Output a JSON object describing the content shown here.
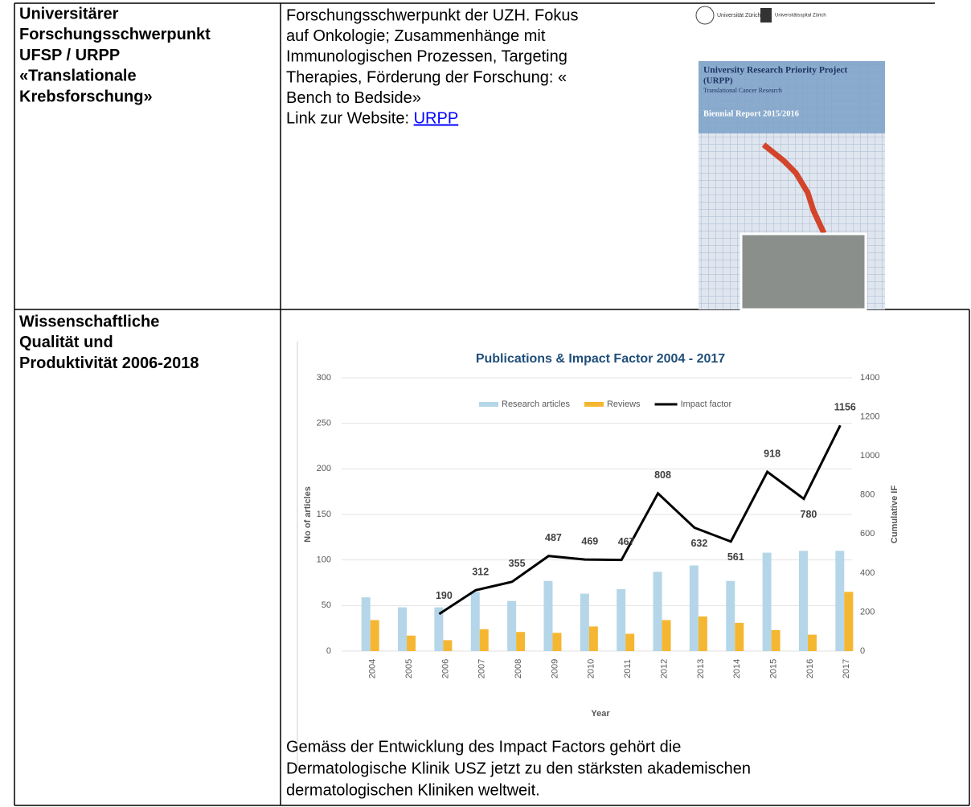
{
  "table": {
    "rows": [
      {
        "label": [
          "Universitärer",
          "Forschungsschwerpunkt",
          "UFSP / URPP",
          "«Translationale",
          "Krebsforschung»"
        ],
        "text": [
          "Forschungsschwerpunkt der UZH. Fokus",
          "auf Onkologie; Zusammenhänge mit",
          "Immunologischen Prozessen, Targeting",
          "Therapies, Förderung der Forschung: «",
          "Bench to Bedside»"
        ],
        "link_prefix": "Link zur Website: ",
        "link": "URPP",
        "cover": {
          "logo_uzh": "Universität Zürich",
          "logo_usz": "Universitätsspital Zürich",
          "title": "University Research Priority Project",
          "subtitle": "(URPP)",
          "tagline": "Translational Cancer Research",
          "report": "Biennial Report 2015/2016"
        }
      },
      {
        "label": [
          "Wissenschaftliche",
          "Qualität und",
          "Produktivität 2006-2018"
        ],
        "text": [
          "Gemäss der Entwicklung des Impact Factors gehört die",
          "Dermatologische Klinik USZ jetzt zu den stärksten akademischen",
          "dermatologischen Kliniken weltweit."
        ]
      }
    ]
  },
  "chart_data": {
    "type": "bar",
    "title": "Publications & Impact Factor 2004 - 2017",
    "xlabel": "Year",
    "ylabel": "No of articles",
    "y2label": "Cumulative IF",
    "categories": [
      "2004",
      "2005",
      "2006",
      "2007",
      "2008",
      "2009",
      "2010",
      "2011",
      "2012",
      "2013",
      "2014",
      "2015",
      "2016",
      "2017"
    ],
    "series": [
      {
        "name": "Research articles",
        "color": "#b4d6e8",
        "values": [
          59,
          48,
          48,
          65,
          55,
          77,
          63,
          68,
          87,
          94,
          77,
          108,
          110,
          110
        ]
      },
      {
        "name": "Reviews",
        "color": "#f5b731",
        "values": [
          34,
          17,
          12,
          24,
          21,
          20,
          27,
          19,
          34,
          38,
          31,
          23,
          18,
          65
        ]
      },
      {
        "name": "Impact factor",
        "type": "line",
        "axis": "y2",
        "color": "#000000",
        "data_labels": true,
        "values": [
          null,
          null,
          190,
          312,
          355,
          487,
          469,
          467,
          808,
          632,
          561,
          918,
          780,
          1156
        ]
      }
    ],
    "ylim": [
      0,
      300
    ],
    "yticks": [
      0,
      50,
      100,
      150,
      200,
      250,
      300
    ],
    "y2lim": [
      0,
      1400
    ],
    "y2ticks": [
      0,
      200,
      400,
      600,
      800,
      1000,
      1200,
      1400
    ],
    "grid": true,
    "legend": "top"
  }
}
